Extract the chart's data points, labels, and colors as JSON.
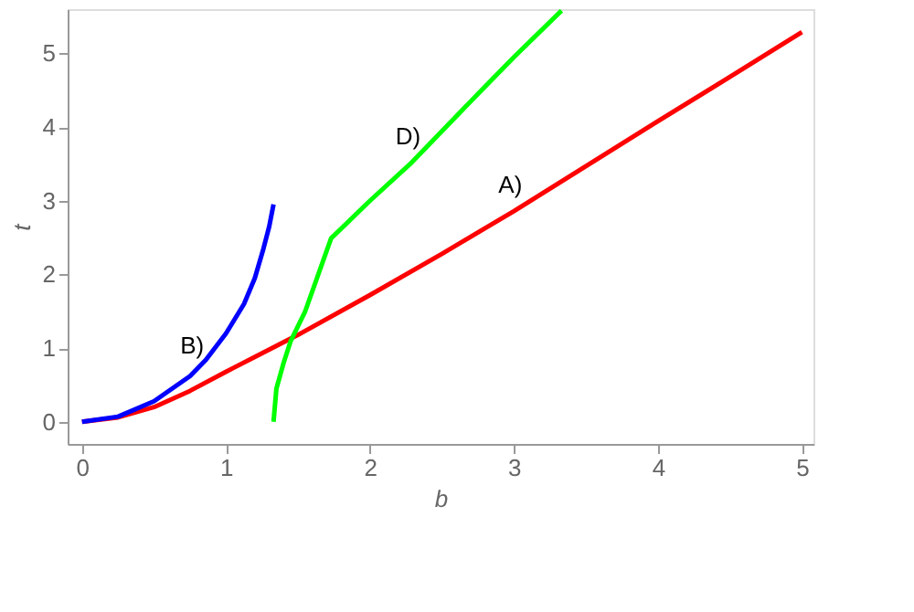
{
  "chart_data": {
    "type": "line",
    "xlabel": "b",
    "ylabel": "t",
    "xlim": [
      -0.1,
      5.08
    ],
    "ylim": [
      -0.3,
      5.6
    ],
    "xticks": [
      0,
      1,
      2,
      3,
      4,
      5
    ],
    "yticks": [
      0,
      1,
      2,
      3,
      4,
      5
    ],
    "grid": false,
    "legend": false,
    "marker": "none",
    "line_style": "solid",
    "series": [
      {
        "color": "#ff0000",
        "x": [
          0,
          0.25,
          0.5,
          0.75,
          1,
          1.25,
          1.5,
          2,
          2.5,
          3,
          3.5,
          4,
          4.5,
          5
        ],
        "values": [
          0,
          0.06,
          0.2,
          0.42,
          0.68,
          0.93,
          1.18,
          1.72,
          2.28,
          2.86,
          3.47,
          4.08,
          4.68,
          5.29
        ]
      },
      {
        "color": "#0000ff",
        "x": [
          0,
          0.25,
          0.5,
          0.75,
          0.86,
          1.0,
          1.125,
          1.2,
          1.26,
          1.3,
          1.33
        ],
        "values": [
          0,
          0.07,
          0.28,
          0.62,
          0.84,
          1.2,
          1.6,
          1.95,
          2.35,
          2.65,
          2.95
        ]
      },
      {
        "color": "#00ff00",
        "x": [
          1.33,
          1.35,
          1.4,
          1.45,
          1.55,
          1.73,
          2.0,
          2.29,
          2.75,
          3.0,
          3.33
        ],
        "values": [
          0,
          0.45,
          0.8,
          1.1,
          1.5,
          2.49,
          3.0,
          3.52,
          4.45,
          4.95,
          5.58
        ]
      }
    ],
    "annotations": [
      {
        "text": "A)",
        "x": 3.0,
        "y": 2.86
      },
      {
        "text": "B)",
        "x": 0.79,
        "y": 0.68
      },
      {
        "text": "D)",
        "x": 2.29,
        "y": 3.52
      }
    ]
  }
}
